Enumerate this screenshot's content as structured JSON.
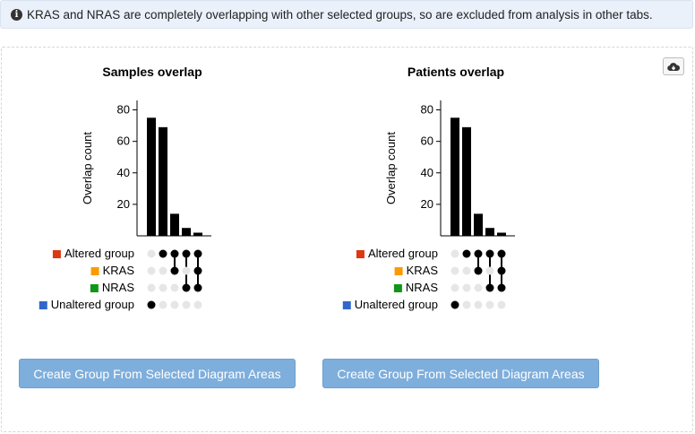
{
  "alert": {
    "icon": "info-icon",
    "text": "KRAS and NRAS are completely overlapping with other selected groups, so are excluded from analysis in other tabs."
  },
  "toolbar": {
    "download_icon": "cloud-download-icon"
  },
  "groups": [
    {
      "label": "Altered group",
      "color": "#dc3912"
    },
    {
      "label": "KRAS",
      "color": "#ff9900"
    },
    {
      "label": "NRAS",
      "color": "#109618"
    },
    {
      "label": "Unaltered group",
      "color": "#3366cc"
    }
  ],
  "create_button_label": "Create Group From Selected Diagram Areas",
  "chart_data": [
    {
      "type": "bar",
      "title": "Samples overlap",
      "ylabel": "Overlap count",
      "ylim": [
        0,
        86
      ],
      "yticks": [
        20,
        40,
        60,
        80
      ],
      "values": [
        75,
        69,
        14,
        5,
        2
      ],
      "membership": [
        [
          3
        ],
        [
          0
        ],
        [
          0,
          1
        ],
        [
          0,
          2
        ],
        [
          0,
          1,
          2
        ]
      ]
    },
    {
      "type": "bar",
      "title": "Patients overlap",
      "ylabel": "Overlap count",
      "ylim": [
        0,
        86
      ],
      "yticks": [
        20,
        40,
        60,
        80
      ],
      "values": [
        75,
        69,
        14,
        5,
        2
      ],
      "membership": [
        [
          3
        ],
        [
          0
        ],
        [
          0,
          1
        ],
        [
          0,
          2
        ],
        [
          0,
          1,
          2
        ]
      ]
    }
  ]
}
